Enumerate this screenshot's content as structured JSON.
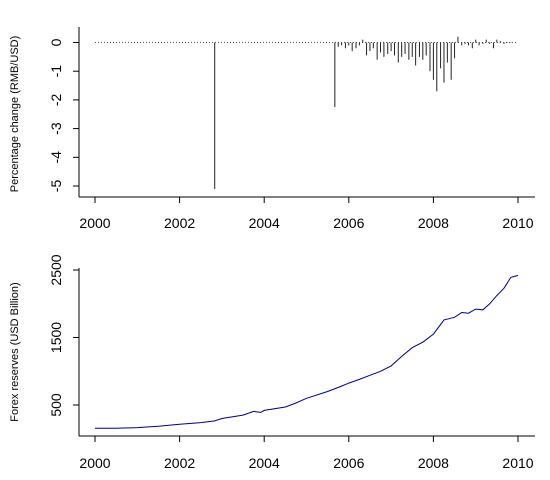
{
  "chart_data": [
    {
      "type": "bar",
      "title": "",
      "ylabel": "Percentage change (RMB/USD)",
      "xlabel": "",
      "xlim": [
        2000,
        2010
      ],
      "ylim": [
        -5.2,
        0.2
      ],
      "x_ticks": [
        "2000",
        "2002",
        "2004",
        "2006",
        "2008",
        "2010"
      ],
      "y_ticks": [
        "0",
        "-1",
        "-2",
        "-3",
        "-4",
        "-5"
      ],
      "zero_line": "dotted",
      "grid": false,
      "series": [
        {
          "x": [
            2002.83,
            2005.67,
            2005.75,
            2005.83,
            2005.92,
            2006.0,
            2006.08,
            2006.17,
            2006.25,
            2006.33,
            2006.42,
            2006.5,
            2006.58,
            2006.67,
            2006.75,
            2006.83,
            2006.92,
            2007.0,
            2007.08,
            2007.17,
            2007.25,
            2007.33,
            2007.42,
            2007.5,
            2007.58,
            2007.67,
            2007.75,
            2007.83,
            2007.92,
            2008.0,
            2008.08,
            2008.17,
            2008.25,
            2008.33,
            2008.42,
            2008.5,
            2008.58,
            2008.67,
            2008.75,
            2008.83,
            2008.92,
            2009.0,
            2009.08,
            2009.17,
            2009.25,
            2009.33,
            2009.42,
            2009.5,
            2009.58,
            2009.67,
            2009.75,
            2009.83,
            2009.92
          ],
          "values": [
            -5.1,
            -2.25,
            -0.15,
            -0.1,
            -0.2,
            -0.1,
            -0.3,
            -0.2,
            -0.1,
            0.1,
            -0.45,
            -0.3,
            -0.2,
            -0.6,
            -0.35,
            -0.5,
            -0.4,
            -0.3,
            -0.45,
            -0.7,
            -0.5,
            -0.4,
            -0.6,
            -0.5,
            -0.8,
            -0.5,
            -0.6,
            -0.45,
            -1.0,
            -1.3,
            -1.7,
            -0.9,
            -1.4,
            -0.7,
            -1.3,
            -0.55,
            0.2,
            -0.1,
            -0.05,
            -0.1,
            -0.2,
            0.1,
            -0.1,
            -0.05,
            0.1,
            -0.05,
            -0.2,
            0.1,
            0.05,
            -0.05,
            0.02,
            -0.02,
            0.0
          ]
        }
      ]
    },
    {
      "type": "line",
      "title": "",
      "ylabel": "Forex reserves (USD Billion)",
      "xlabel": "",
      "xlim": [
        2000,
        2010
      ],
      "ylim": [
        150,
        2500
      ],
      "x_ticks": [
        "2000",
        "2002",
        "2004",
        "2006",
        "2008",
        "2010"
      ],
      "y_ticks": [
        "500",
        "1500",
        "2500"
      ],
      "grid": false,
      "colors": {
        "line": "#000080"
      },
      "series": [
        {
          "x": [
            2000.0,
            2000.5,
            2001.0,
            2001.5,
            2002.0,
            2002.5,
            2002.83,
            2003.0,
            2003.5,
            2003.75,
            2003.92,
            2004.0,
            2004.5,
            2004.75,
            2005.0,
            2005.5,
            2005.83,
            2006.0,
            2006.25,
            2006.5,
            2006.75,
            2007.0,
            2007.25,
            2007.5,
            2007.75,
            2008.0,
            2008.25,
            2008.5,
            2008.67,
            2008.83,
            2009.0,
            2009.17,
            2009.33,
            2009.5,
            2009.67,
            2009.83,
            2010.0
          ],
          "values": [
            155,
            155,
            165,
            185,
            215,
            240,
            265,
            300,
            350,
            405,
            390,
            420,
            470,
            530,
            600,
            700,
            780,
            825,
            880,
            940,
            1000,
            1080,
            1220,
            1350,
            1430,
            1550,
            1760,
            1800,
            1870,
            1860,
            1920,
            1910,
            2000,
            2120,
            2230,
            2390,
            2420
          ]
        }
      ]
    }
  ]
}
